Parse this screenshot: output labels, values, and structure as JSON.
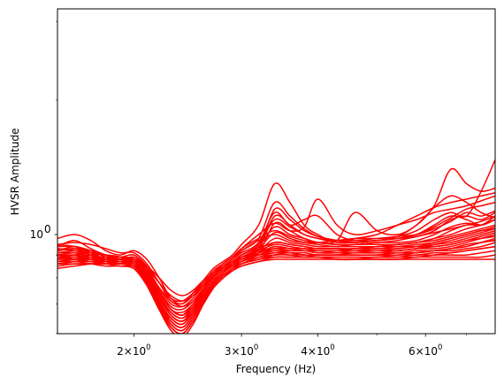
{
  "chart_data": {
    "type": "line",
    "title": "",
    "xlabel": "Frequency (Hz)",
    "ylabel": "HVSR Amplitude",
    "xscale": "log",
    "yscale": "log",
    "xlim": [
      1.5,
      7.8
    ],
    "ylim": [
      0.6,
      3.2
    ],
    "grid": false,
    "legend": "none",
    "line_color": "#ff0000",
    "x_tick_labels": [
      {
        "value": 2,
        "base": "2",
        "sep": "×",
        "exp_base": "10",
        "exp": "0"
      },
      {
        "value": 3,
        "base": "3",
        "sep": "×",
        "exp_base": "10",
        "exp": "0"
      },
      {
        "value": 4,
        "base": "4",
        "sep": "×",
        "exp_base": "10",
        "exp": "0"
      },
      {
        "value": 6,
        "base": "6",
        "sep": "×",
        "exp_base": "10",
        "exp": "0"
      }
    ],
    "x_minor_ticks": [
      5,
      7
    ],
    "y_tick_labels": [
      {
        "value": 1,
        "base": "10",
        "exp": "0"
      }
    ],
    "y_minor_ticks": [
      0.6,
      0.7,
      0.8,
      0.9,
      2,
      3
    ],
    "x": [
      1.5,
      1.6,
      1.7,
      1.8,
      1.9,
      2.0,
      2.1,
      2.2,
      2.3,
      2.4,
      2.5,
      2.6,
      2.7,
      2.8,
      2.9,
      3.0,
      3.2,
      3.4,
      3.6,
      3.8,
      4.0,
      4.3,
      4.6,
      5.0,
      5.4,
      5.8,
      6.2,
      6.6,
      7.0,
      7.4,
      7.8
    ],
    "series": [
      {
        "values": [
          0.98,
          1.0,
          0.97,
          0.92,
          0.9,
          0.92,
          0.88,
          0.8,
          0.72,
          0.7,
          0.74,
          0.79,
          0.84,
          0.87,
          0.9,
          0.95,
          1.05,
          1.3,
          1.18,
          1.05,
          1.0,
          0.96,
          0.98,
          1.0,
          1.05,
          1.1,
          1.15,
          1.18,
          1.2,
          1.22,
          1.24
        ]
      },
      {
        "values": [
          0.95,
          0.96,
          0.95,
          0.93,
          0.91,
          0.91,
          0.86,
          0.78,
          0.72,
          0.71,
          0.74,
          0.78,
          0.83,
          0.86,
          0.89,
          0.93,
          1.0,
          1.06,
          1.02,
          1.04,
          1.2,
          1.05,
          1.0,
          1.02,
          1.05,
          1.08,
          1.12,
          1.14,
          1.16,
          1.19,
          1.22
        ]
      },
      {
        "values": [
          0.94,
          0.97,
          0.93,
          0.9,
          0.89,
          0.9,
          0.85,
          0.78,
          0.71,
          0.7,
          0.73,
          0.78,
          0.82,
          0.86,
          0.89,
          0.93,
          0.98,
          1.02,
          0.99,
          0.97,
          0.96,
          0.97,
          1.12,
          1.02,
          1.0,
          1.05,
          1.16,
          1.4,
          1.3,
          1.25,
          1.27
        ]
      },
      {
        "values": [
          0.92,
          0.94,
          0.92,
          0.9,
          0.88,
          0.89,
          0.84,
          0.76,
          0.7,
          0.69,
          0.72,
          0.77,
          0.82,
          0.86,
          0.89,
          0.92,
          0.97,
          1.0,
          0.97,
          0.96,
          0.96,
          0.97,
          0.98,
          0.98,
          0.99,
          1.02,
          1.08,
          1.12,
          1.1,
          1.25,
          1.47
        ]
      },
      {
        "values": [
          0.93,
          0.92,
          0.91,
          0.9,
          0.88,
          0.88,
          0.83,
          0.75,
          0.69,
          0.68,
          0.71,
          0.76,
          0.81,
          0.85,
          0.88,
          0.92,
          0.98,
          1.18,
          1.1,
          1.03,
          0.99,
          0.97,
          0.96,
          0.97,
          0.99,
          1.05,
          1.15,
          1.22,
          1.18,
          1.12,
          1.09
        ]
      },
      {
        "values": [
          0.95,
          0.94,
          0.91,
          0.87,
          0.86,
          0.89,
          0.84,
          0.75,
          0.68,
          0.67,
          0.7,
          0.76,
          0.81,
          0.85,
          0.88,
          0.91,
          0.96,
          1.12,
          1.05,
          1.08,
          1.1,
          1.0,
          0.97,
          0.97,
          0.98,
          1.0,
          1.05,
          1.1,
          1.08,
          1.05,
          1.08
        ]
      },
      {
        "values": [
          0.9,
          0.91,
          0.9,
          0.88,
          0.87,
          0.88,
          0.82,
          0.74,
          0.68,
          0.66,
          0.7,
          0.75,
          0.8,
          0.84,
          0.87,
          0.9,
          0.95,
          1.08,
          1.04,
          1.0,
          0.98,
          0.96,
          0.96,
          0.97,
          0.98,
          0.99,
          1.02,
          1.08,
          1.1,
          1.08,
          1.12
        ]
      },
      {
        "values": [
          0.92,
          0.93,
          0.92,
          0.89,
          0.87,
          0.87,
          0.82,
          0.73,
          0.67,
          0.65,
          0.69,
          0.75,
          0.8,
          0.84,
          0.87,
          0.9,
          0.94,
          1.04,
          1.0,
          0.98,
          0.96,
          0.95,
          0.95,
          0.96,
          0.96,
          0.97,
          1.0,
          1.04,
          1.06,
          1.05,
          1.1
        ]
      },
      {
        "values": [
          0.91,
          0.92,
          0.92,
          0.9,
          0.88,
          0.87,
          0.81,
          0.73,
          0.66,
          0.64,
          0.68,
          0.74,
          0.79,
          0.83,
          0.86,
          0.89,
          0.93,
          1.01,
          0.98,
          0.96,
          0.95,
          0.94,
          0.95,
          0.95,
          0.95,
          0.96,
          0.98,
          1.02,
          1.05,
          1.05,
          1.08
        ]
      },
      {
        "values": [
          0.9,
          0.9,
          0.91,
          0.9,
          0.89,
          0.88,
          0.81,
          0.72,
          0.66,
          0.64,
          0.68,
          0.74,
          0.79,
          0.83,
          0.86,
          0.89,
          0.92,
          0.98,
          0.96,
          0.95,
          0.94,
          0.94,
          0.94,
          0.94,
          0.95,
          0.96,
          0.97,
          0.99,
          1.01,
          1.03,
          1.05
        ]
      },
      {
        "values": [
          0.89,
          0.89,
          0.89,
          0.89,
          0.88,
          0.87,
          0.8,
          0.71,
          0.65,
          0.63,
          0.67,
          0.73,
          0.78,
          0.82,
          0.85,
          0.88,
          0.91,
          0.96,
          0.95,
          0.94,
          0.93,
          0.93,
          0.93,
          0.94,
          0.94,
          0.95,
          0.96,
          0.98,
          1.0,
          1.02,
          1.03
        ]
      },
      {
        "values": [
          0.88,
          0.89,
          0.9,
          0.9,
          0.89,
          0.86,
          0.79,
          0.7,
          0.64,
          0.62,
          0.66,
          0.72,
          0.78,
          0.82,
          0.85,
          0.88,
          0.91,
          0.94,
          0.93,
          0.93,
          0.92,
          0.92,
          0.93,
          0.93,
          0.94,
          0.94,
          0.95,
          0.96,
          0.98,
          1.0,
          1.02
        ]
      },
      {
        "values": [
          0.87,
          0.88,
          0.88,
          0.88,
          0.88,
          0.86,
          0.79,
          0.7,
          0.64,
          0.62,
          0.66,
          0.72,
          0.77,
          0.81,
          0.84,
          0.87,
          0.9,
          0.93,
          0.93,
          0.92,
          0.92,
          0.92,
          0.92,
          0.93,
          0.93,
          0.94,
          0.94,
          0.95,
          0.97,
          0.99,
          1.01
        ]
      },
      {
        "values": [
          0.86,
          0.87,
          0.87,
          0.87,
          0.87,
          0.85,
          0.78,
          0.69,
          0.63,
          0.61,
          0.65,
          0.71,
          0.77,
          0.81,
          0.84,
          0.87,
          0.9,
          0.92,
          0.92,
          0.92,
          0.91,
          0.91,
          0.92,
          0.92,
          0.92,
          0.93,
          0.93,
          0.94,
          0.96,
          0.98,
          1.0
        ]
      },
      {
        "values": [
          0.86,
          0.86,
          0.86,
          0.86,
          0.86,
          0.84,
          0.77,
          0.68,
          0.62,
          0.6,
          0.64,
          0.7,
          0.76,
          0.8,
          0.84,
          0.86,
          0.89,
          0.91,
          0.91,
          0.91,
          0.9,
          0.9,
          0.91,
          0.91,
          0.91,
          0.92,
          0.92,
          0.93,
          0.94,
          0.96,
          0.98
        ]
      },
      {
        "values": [
          0.87,
          0.87,
          0.86,
          0.85,
          0.85,
          0.84,
          0.77,
          0.68,
          0.62,
          0.6,
          0.64,
          0.7,
          0.76,
          0.8,
          0.83,
          0.86,
          0.88,
          0.9,
          0.91,
          0.9,
          0.9,
          0.9,
          0.9,
          0.9,
          0.91,
          0.91,
          0.92,
          0.92,
          0.93,
          0.94,
          0.96
        ]
      },
      {
        "values": [
          0.88,
          0.88,
          0.87,
          0.86,
          0.86,
          0.85,
          0.78,
          0.68,
          0.61,
          0.59,
          0.63,
          0.7,
          0.76,
          0.8,
          0.83,
          0.86,
          0.88,
          0.9,
          0.9,
          0.9,
          0.89,
          0.89,
          0.89,
          0.89,
          0.9,
          0.9,
          0.91,
          0.91,
          0.92,
          0.93,
          0.94
        ]
      },
      {
        "values": [
          0.89,
          0.9,
          0.88,
          0.86,
          0.85,
          0.84,
          0.78,
          0.69,
          0.62,
          0.6,
          0.64,
          0.7,
          0.76,
          0.8,
          0.83,
          0.85,
          0.87,
          0.89,
          0.89,
          0.89,
          0.89,
          0.88,
          0.88,
          0.89,
          0.89,
          0.89,
          0.9,
          0.9,
          0.9,
          0.91,
          0.92
        ]
      },
      {
        "values": [
          0.91,
          0.91,
          0.89,
          0.87,
          0.86,
          0.85,
          0.79,
          0.7,
          0.63,
          0.61,
          0.65,
          0.71,
          0.77,
          0.81,
          0.83,
          0.85,
          0.87,
          0.88,
          0.88,
          0.88,
          0.88,
          0.88,
          0.88,
          0.88,
          0.88,
          0.89,
          0.89,
          0.89,
          0.89,
          0.89,
          0.9
        ]
      },
      {
        "values": [
          0.85,
          0.86,
          0.86,
          0.86,
          0.86,
          0.85,
          0.79,
          0.7,
          0.64,
          0.62,
          0.66,
          0.72,
          0.77,
          0.81,
          0.84,
          0.86,
          0.88,
          0.89,
          0.89,
          0.89,
          0.89,
          0.88,
          0.88,
          0.88,
          0.88,
          0.88,
          0.88,
          0.88,
          0.88,
          0.88,
          0.88
        ]
      },
      {
        "values": [
          0.84,
          0.85,
          0.86,
          0.87,
          0.87,
          0.86,
          0.8,
          0.72,
          0.66,
          0.64,
          0.67,
          0.73,
          0.78,
          0.82,
          0.85,
          0.87,
          0.89,
          0.9,
          0.9,
          0.89,
          0.89,
          0.89,
          0.89,
          0.89,
          0.89,
          0.9,
          0.9,
          0.91,
          0.92,
          0.93,
          0.94
        ]
      },
      {
        "values": [
          0.86,
          0.87,
          0.88,
          0.88,
          0.88,
          0.87,
          0.82,
          0.74,
          0.68,
          0.66,
          0.69,
          0.74,
          0.79,
          0.83,
          0.86,
          0.88,
          0.9,
          0.91,
          0.91,
          0.9,
          0.9,
          0.9,
          0.9,
          0.9,
          0.91,
          0.91,
          0.92,
          0.93,
          0.94,
          0.96,
          0.97
        ]
      },
      {
        "values": [
          0.88,
          0.89,
          0.89,
          0.89,
          0.89,
          0.88,
          0.83,
          0.76,
          0.71,
          0.69,
          0.71,
          0.76,
          0.81,
          0.84,
          0.87,
          0.89,
          0.91,
          0.93,
          0.92,
          0.92,
          0.91,
          0.91,
          0.91,
          0.92,
          0.92,
          0.93,
          0.94,
          0.95,
          0.97,
          0.98,
          0.99
        ]
      },
      {
        "values": [
          0.9,
          0.9,
          0.89,
          0.88,
          0.88,
          0.88,
          0.84,
          0.78,
          0.73,
          0.71,
          0.73,
          0.77,
          0.81,
          0.84,
          0.86,
          0.88,
          0.9,
          0.92,
          0.91,
          0.9,
          0.9,
          0.9,
          0.9,
          0.9,
          0.9,
          0.91,
          0.92,
          0.93,
          0.95,
          0.96,
          0.97
        ]
      },
      {
        "values": [
          0.93,
          0.92,
          0.9,
          0.88,
          0.87,
          0.88,
          0.85,
          0.8,
          0.75,
          0.73,
          0.75,
          0.79,
          0.82,
          0.85,
          0.87,
          0.89,
          0.91,
          0.94,
          0.93,
          0.92,
          0.92,
          0.91,
          0.91,
          0.91,
          0.92,
          0.93,
          0.95,
          0.97,
          0.99,
          1.01,
          1.03
        ]
      },
      {
        "values": [
          0.94,
          0.94,
          0.92,
          0.89,
          0.87,
          0.87,
          0.82,
          0.74,
          0.68,
          0.66,
          0.69,
          0.75,
          0.8,
          0.84,
          0.87,
          0.9,
          0.93,
          0.96,
          0.95,
          0.94,
          0.93,
          0.93,
          0.92,
          0.92,
          0.93,
          0.94,
          0.96,
          0.98,
          1.0,
          1.02,
          1.04
        ]
      },
      {
        "values": [
          0.89,
          0.88,
          0.88,
          0.87,
          0.87,
          0.87,
          0.81,
          0.73,
          0.67,
          0.65,
          0.68,
          0.74,
          0.79,
          0.83,
          0.86,
          0.89,
          0.92,
          0.95,
          0.94,
          0.93,
          0.93,
          0.93,
          0.93,
          0.94,
          0.95,
          0.96,
          0.98,
          1.0,
          1.03,
          1.05,
          1.08
        ]
      },
      {
        "values": [
          0.87,
          0.88,
          0.89,
          0.89,
          0.88,
          0.86,
          0.8,
          0.71,
          0.65,
          0.63,
          0.67,
          0.73,
          0.78,
          0.82,
          0.85,
          0.88,
          0.91,
          1.06,
          1.02,
          0.98,
          0.96,
          0.95,
          0.95,
          0.96,
          0.97,
          0.99,
          1.01,
          1.03,
          1.05,
          1.07,
          1.1
        ]
      },
      {
        "values": [
          0.9,
          0.89,
          0.88,
          0.87,
          0.87,
          0.86,
          0.8,
          0.71,
          0.65,
          0.63,
          0.67,
          0.73,
          0.78,
          0.82,
          0.86,
          0.89,
          0.93,
          1.1,
          1.05,
          1.0,
          0.98,
          0.97,
          0.97,
          0.98,
          0.99,
          1.0,
          1.03,
          1.07,
          1.12,
          1.1,
          1.13
        ]
      },
      {
        "values": [
          0.92,
          0.93,
          0.91,
          0.88,
          0.86,
          0.86,
          0.8,
          0.71,
          0.64,
          0.62,
          0.66,
          0.72,
          0.78,
          0.82,
          0.86,
          0.89,
          0.93,
          1.14,
          1.08,
          1.02,
          0.99,
          0.97,
          0.96,
          0.97,
          0.98,
          1.0,
          1.04,
          1.09,
          1.14,
          1.16,
          1.18
        ]
      }
    ]
  }
}
